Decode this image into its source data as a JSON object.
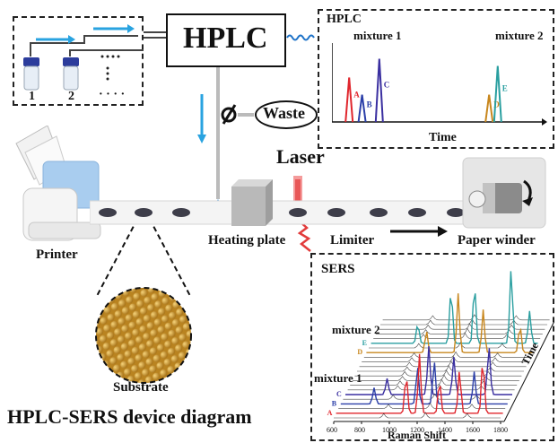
{
  "labels": {
    "hplc": "HPLC",
    "waste": "Waste",
    "laser": "Laser",
    "heating_plate": "Heating plate",
    "limiter": "Limiter",
    "paper_winder": "Paper winder",
    "printer": "Printer",
    "substrate": "Substrate",
    "title": "HPLC-SERS device diagram",
    "vial_1": "1",
    "vial_2": "2",
    "vial_more": "· · · ·"
  },
  "hplc_chart": {
    "panel_title": "HPLC",
    "xlabel": "Time",
    "group_labels": [
      "mixture 1",
      "mixture 2"
    ],
    "peaks": [
      {
        "label": "A",
        "time": 0.08,
        "height": 0.62,
        "color": "#e0262d"
      },
      {
        "label": "B",
        "time": 0.14,
        "height": 0.38,
        "color": "#2b3fa8"
      },
      {
        "label": "C",
        "time": 0.22,
        "height": 0.88,
        "color": "#3a2fa0"
      },
      {
        "label": "D",
        "time": 0.73,
        "height": 0.38,
        "color": "#c8871e"
      },
      {
        "label": "E",
        "time": 0.77,
        "height": 0.78,
        "color": "#2a9fa0"
      }
    ]
  },
  "sers_chart": {
    "panel_title": "SERS",
    "xlabel": "Raman Shift",
    "ylabel": "Time",
    "ticks": [
      "600",
      "800",
      "1000",
      "1200",
      "1400",
      "1600",
      "1800"
    ],
    "group_labels": [
      "mixture 2",
      "mixture 1"
    ],
    "series": [
      {
        "label": "A",
        "color": "#e0262d"
      },
      {
        "label": "B",
        "color": "#2b3fa8"
      },
      {
        "label": "C",
        "color": "#3a2fa0"
      },
      {
        "label": "D",
        "color": "#c8871e"
      },
      {
        "label": "E",
        "color": "#2a9fa0"
      }
    ]
  },
  "colors": {
    "flow_arrow": "#29a3e0",
    "laser": "#e23b3b",
    "substrate": "#c99a2e"
  }
}
